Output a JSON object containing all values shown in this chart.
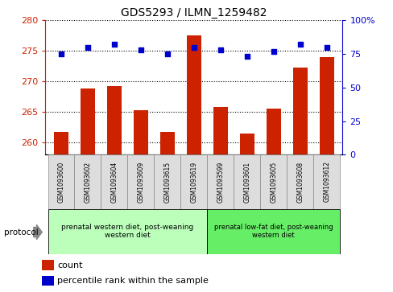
{
  "title": "GDS5293 / ILMN_1259482",
  "samples": [
    "GSM1093600",
    "GSM1093602",
    "GSM1093604",
    "GSM1093609",
    "GSM1093615",
    "GSM1093619",
    "GSM1093599",
    "GSM1093601",
    "GSM1093605",
    "GSM1093608",
    "GSM1093612"
  ],
  "counts": [
    261.8,
    268.8,
    269.3,
    265.3,
    261.8,
    277.5,
    265.8,
    261.5,
    265.5,
    272.3,
    274.0
  ],
  "percentiles": [
    75,
    80,
    82,
    78,
    75,
    80,
    78,
    73,
    77,
    82,
    80
  ],
  "ylim_left": [
    258,
    280
  ],
  "ylim_right": [
    0,
    100
  ],
  "yticks_left": [
    260,
    265,
    270,
    275,
    280
  ],
  "yticks_right": [
    0,
    25,
    50,
    75,
    100
  ],
  "ytick_right_labels": [
    "0",
    "25",
    "50",
    "75",
    "100%"
  ],
  "bar_color": "#cc2200",
  "dot_color": "#0000cc",
  "group1_label": "prenatal western diet, post-weaning\nwestern diet",
  "group2_label": "prenatal low-fat diet, post-weaning\nwestern diet",
  "group1_color": "#bbffbb",
  "group2_color": "#66ee66",
  "protocol_label": "protocol",
  "legend_count": "count",
  "legend_percentile": "percentile rank within the sample",
  "sample_bg_color": "#dddddd",
  "group1_indices": [
    0,
    1,
    2,
    3,
    4,
    5
  ],
  "group2_indices": [
    6,
    7,
    8,
    9,
    10
  ]
}
